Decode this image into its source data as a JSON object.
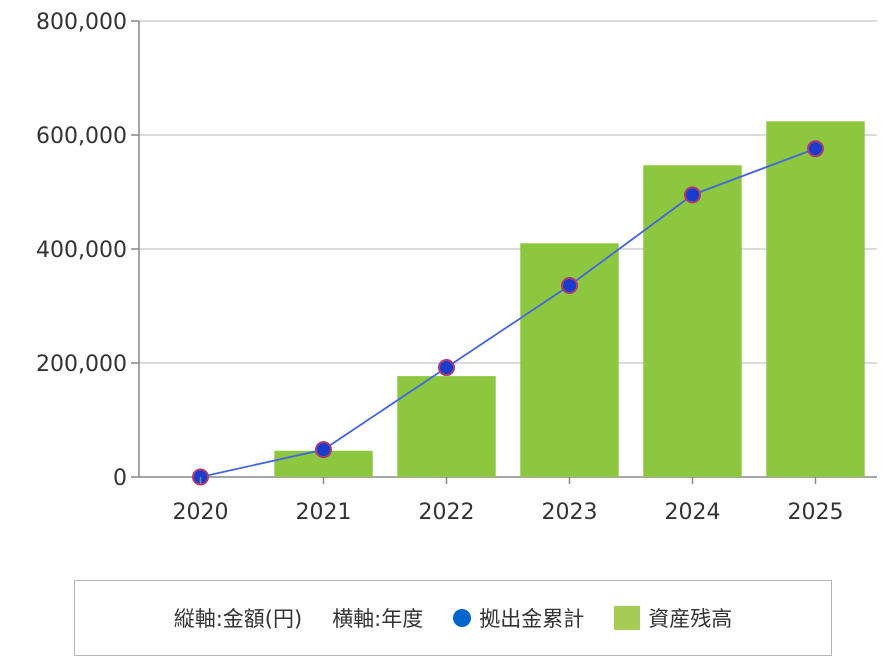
{
  "chart_data": {
    "type": "bar",
    "categories": [
      "2020",
      "2021",
      "2022",
      "2023",
      "2024",
      "2025"
    ],
    "series": [
      {
        "name": "資産残高",
        "kind": "bar",
        "color": "#8dc63f",
        "values": [
          0,
          46000,
          177000,
          410000,
          547000,
          624000
        ]
      },
      {
        "name": "拠出金累計",
        "kind": "line",
        "color": "#0066cc",
        "line_color": "#4466dd",
        "values": [
          0,
          48000,
          192000,
          336000,
          495000,
          576000
        ]
      }
    ],
    "ylim": [
      0,
      800000
    ],
    "yticks": [
      0,
      200000,
      400000,
      600000,
      800000
    ],
    "ytick_labels": [
      "0",
      "200,000",
      "400,000",
      "600,000",
      "800,000"
    ],
    "grid": true,
    "legend_position": "bottom"
  },
  "legend": {
    "y_axis_note": "縦軸:金額(円)",
    "x_axis_note": "横軸:年度",
    "line_series_label": "拠出金累計",
    "bar_series_label": "資産残高"
  }
}
